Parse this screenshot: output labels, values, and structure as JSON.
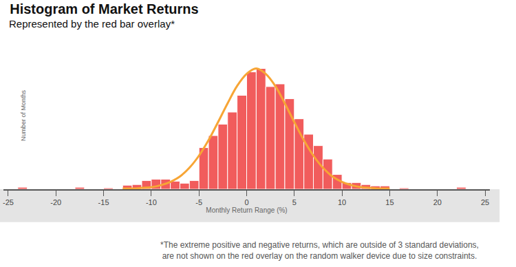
{
  "chart_data": {
    "type": "histogram",
    "title": "Histogram of Market Returns",
    "subtitle": "Represented by the red bar overlay*",
    "x_label": "Monthly Return Range (%)",
    "y_label": "Number of Months",
    "note": [
      "*The extreme positive and negative returns, which are outside of 3 standard deviations,",
      "are not shown on the red overlay on the random walker device due to size constraints."
    ],
    "bins": [
      -24,
      -23,
      -22,
      -21,
      -20,
      -19,
      -18,
      -17,
      -16,
      -15,
      -14,
      -13,
      -12,
      -11,
      -10,
      -9,
      -8,
      -7,
      -6,
      -5,
      -4,
      -3,
      -2,
      -1,
      0,
      1,
      2,
      3,
      4,
      5,
      6,
      7,
      8,
      9,
      10,
      11,
      12,
      13,
      14,
      15,
      16,
      17,
      18,
      19,
      20,
      21,
      22,
      23
    ],
    "series": [
      {
        "type": "bar",
        "color": "#f04b4b",
        "values": [
          3,
          0,
          0,
          0,
          0,
          0,
          3,
          0,
          0,
          2,
          0,
          6,
          7,
          13,
          15,
          15,
          12,
          9,
          13,
          62,
          80,
          97,
          115,
          140,
          175,
          180,
          153,
          157,
          135,
          105,
          82,
          65,
          45,
          22,
          10,
          10,
          7,
          5,
          5,
          0,
          2,
          0,
          0,
          0,
          0,
          0,
          3
        ]
      },
      {
        "type": "line",
        "color": "#f7a535",
        "x": [
          -13,
          -12,
          -11,
          -10,
          -9,
          -8,
          -7,
          -6,
          -5,
          -4,
          -3,
          -2,
          -1,
          0,
          1,
          2,
          3,
          4,
          5,
          6,
          7,
          8,
          9,
          10,
          11,
          12,
          13,
          14,
          15
        ],
        "values": [
          1,
          1,
          2,
          3,
          6,
          11,
          19,
          32,
          50,
          73,
          100,
          128,
          154,
          172,
          180,
          172,
          154,
          128,
          100,
          73,
          50,
          32,
          19,
          11,
          6,
          3,
          2,
          1,
          1
        ]
      }
    ],
    "xlim": [
      -25.5,
      25.5
    ],
    "xticks": [
      -25,
      -20,
      -15,
      -10,
      -5,
      0,
      5,
      10,
      15,
      20,
      25
    ],
    "ylim": [
      0,
      200
    ],
    "yticks": [],
    "tick_labels": "x",
    "grid": false
  }
}
